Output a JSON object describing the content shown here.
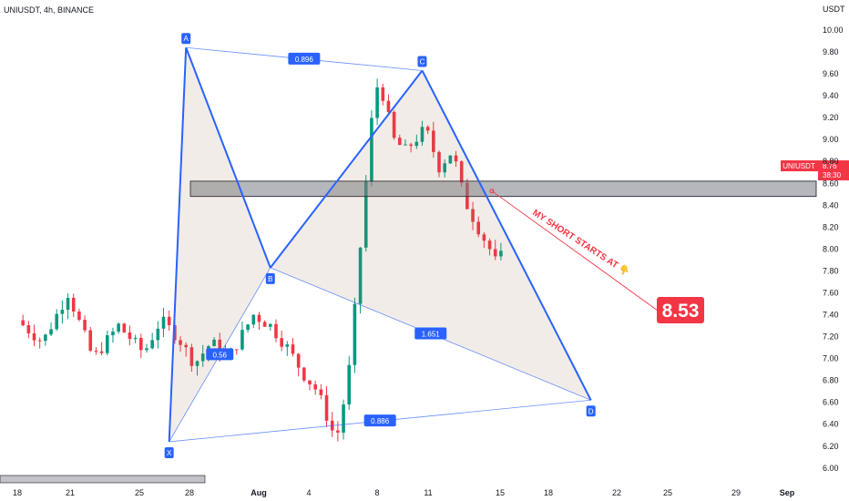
{
  "header": {
    "symbol": "UNIUSDT, 4h, BINANCE"
  },
  "chart_data": {
    "type": "candlestick",
    "y_axis": {
      "currency": "USDT",
      "ticks": [
        "10.00",
        "9.80",
        "9.60",
        "9.40",
        "9.20",
        "9.00",
        "8.80",
        "8.60",
        "8.40",
        "8.20",
        "8.00",
        "7.80",
        "7.60",
        "7.40",
        "7.20",
        "7.00",
        "6.80",
        "6.60",
        "6.40",
        "6.20",
        "6.00"
      ],
      "range": [
        5.96,
        10.2
      ]
    },
    "x_axis": {
      "ticks": [
        "18",
        "21",
        "25",
        "28",
        "Aug",
        "4",
        "8",
        "11",
        "15",
        "18",
        "22",
        "25",
        "29",
        "Sep"
      ]
    },
    "colors": {
      "up": "#089981",
      "down": "#f23645",
      "pattern": "#2962ff",
      "annotation": "#f23645",
      "zone": "#b2b5be"
    },
    "harmonic_pattern": {
      "points": [
        {
          "label": "X",
          "date": "Jul 27",
          "price": 6.24
        },
        {
          "label": "A",
          "date": "Jul 28",
          "price": 9.84
        },
        {
          "label": "B",
          "date": "Aug 2",
          "price": 7.83
        },
        {
          "label": "C",
          "date": "Aug 11",
          "price": 9.63
        },
        {
          "label": "D",
          "date": "Aug 21",
          "price": 6.62
        }
      ],
      "ratios": [
        {
          "label": "0.56",
          "between": "XA-B"
        },
        {
          "label": "0.896",
          "between": "AC"
        },
        {
          "label": "1.651",
          "between": "BD"
        },
        {
          "label": "0.886",
          "between": "XD"
        }
      ]
    },
    "support_zone": {
      "low": 8.48,
      "high": 8.62
    },
    "current_price": {
      "symbol": "UNIUSDT",
      "value": "8.76",
      "countdown": "38:30"
    },
    "annotation": {
      "text": "MY SHORT STARTS AT 👇",
      "value": "8.53"
    }
  }
}
